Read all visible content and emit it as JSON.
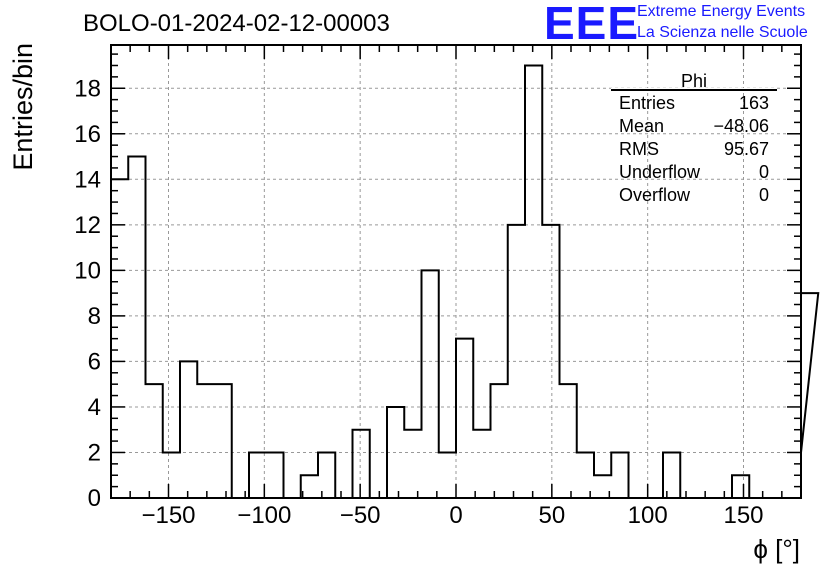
{
  "title": "BOLO-01-2024-02-12-00003",
  "logo": {
    "text": "EEE",
    "line1": "Extreme Energy Events",
    "line2": "La Scienza nelle Scuole",
    "color": "#1a1aff"
  },
  "chart_data": {
    "type": "bar",
    "histogram": true,
    "title": "BOLO-01-2024-02-12-00003",
    "xlabel": "ϕ [°]",
    "ylabel": "Entries/bin",
    "xlim": [
      -180,
      180
    ],
    "ylim": [
      0,
      19.9
    ],
    "grid": true,
    "bin_width": 9,
    "x_ticks": [
      -150,
      -100,
      -50,
      0,
      50,
      100,
      150
    ],
    "x_tick_labels": [
      "−150",
      "−100",
      "−50",
      "0",
      "50",
      "100",
      "150"
    ],
    "y_ticks": [
      0,
      2,
      4,
      6,
      8,
      10,
      12,
      14,
      16,
      18
    ],
    "bin_edges_start": -180,
    "values": [
      14,
      15,
      5,
      2,
      6,
      5,
      5,
      0,
      2,
      2,
      0,
      1,
      2,
      0,
      3,
      0,
      4,
      3,
      10,
      2,
      7,
      3,
      5,
      12,
      19,
      12,
      5,
      2,
      1,
      2,
      0,
      0,
      2,
      0,
      0,
      0,
      1,
      0,
      0,
      0,
      2,
      9
    ],
    "stats_box": {
      "name": "Phi",
      "rows": [
        {
          "label": "Entries",
          "value": "163"
        },
        {
          "label": "Mean",
          "value": "−48.06"
        },
        {
          "label": "RMS",
          "value": "95.67"
        },
        {
          "label": "Underflow",
          "value": "0"
        },
        {
          "label": "Overflow",
          "value": "0"
        }
      ]
    }
  }
}
